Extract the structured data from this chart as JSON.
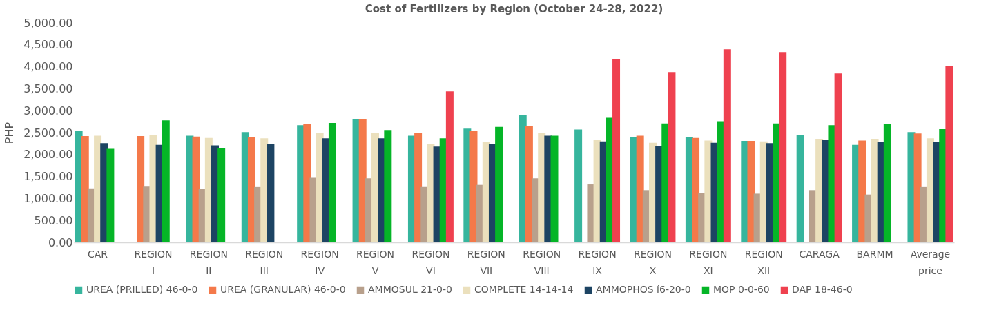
{
  "chart_data": {
    "type": "bar",
    "title": "Cost of Fertilizers by Region (October 24-28, 2022)",
    "ylabel": "PHP",
    "categories": [
      "CAR",
      "REGION I",
      "REGION II",
      "REGION III",
      "REGION IV",
      "REGION V",
      "REGION VI",
      "REGION VII",
      "REGION VIII",
      "REGION IX",
      "REGION X",
      "REGION XI",
      "REGION XII",
      "CARAGA",
      "BARMM",
      "Average price"
    ],
    "series": [
      {
        "name": "UREA (PRILLED) 46-0-0",
        "color": "#36b59d",
        "values": [
          2540,
          null,
          2430,
          2510,
          2670,
          2810,
          2430,
          2590,
          2900,
          2570,
          2400,
          2400,
          2310,
          2440,
          2220,
          2510
        ]
      },
      {
        "name": "UREA (GRANULAR) 46-0-0",
        "color": "#f4794a",
        "values": [
          2420,
          2420,
          2410,
          2400,
          2700,
          2800,
          2490,
          2540,
          2640,
          null,
          2430,
          2380,
          2310,
          null,
          2320,
          2480
        ]
      },
      {
        "name": "AMMOSUL 21-0-0",
        "color": "#b8a08c",
        "values": [
          1230,
          1270,
          1220,
          1260,
          1470,
          1460,
          1260,
          1310,
          1460,
          1320,
          1190,
          1120,
          1110,
          1190,
          1090,
          1260
        ]
      },
      {
        "name": "COMPLETE 14-14-14",
        "color": "#ebe0bd",
        "values": [
          2430,
          2440,
          2380,
          2370,
          2490,
          2490,
          2240,
          2290,
          2490,
          2340,
          2270,
          2320,
          2300,
          2360,
          2360,
          2370
        ]
      },
      {
        "name": "AMMOPHOS í6-20-0",
        "color": "#1d4463",
        "values": [
          2260,
          2220,
          2210,
          2250,
          2370,
          2370,
          2180,
          2240,
          2430,
          2300,
          2200,
          2270,
          2260,
          2330,
          2290,
          2280
        ]
      },
      {
        "name": "MOP 0-0-60",
        "color": "#05b527",
        "values": [
          2130,
          2780,
          2150,
          null,
          2720,
          2560,
          2370,
          2630,
          2430,
          2840,
          2710,
          2760,
          2710,
          2670,
          2700,
          2580
        ]
      },
      {
        "name": "DAP 18-46-0",
        "color": "#ef414f",
        "values": [
          null,
          null,
          null,
          null,
          null,
          null,
          3440,
          null,
          null,
          4180,
          3880,
          4400,
          4320,
          3850,
          null,
          4010
        ]
      }
    ],
    "ylim": [
      0,
      5000
    ],
    "yticks": [
      {
        "value": 0,
        "label": "0.00"
      },
      {
        "value": 500,
        "label": "500.00"
      },
      {
        "value": 1000,
        "label": "1,000.00"
      },
      {
        "value": 1500,
        "label": "1,500.00"
      },
      {
        "value": 2000,
        "label": "2,000.00"
      },
      {
        "value": 2500,
        "label": "2,500.00"
      },
      {
        "value": 3000,
        "label": "3,000.00"
      },
      {
        "value": 3500,
        "label": "3,500.00"
      },
      {
        "value": 4000,
        "label": "4,000.00"
      },
      {
        "value": 4500,
        "label": "4,500.00"
      },
      {
        "value": 5000,
        "label": "5,000.00"
      }
    ],
    "grid": false,
    "legend": "bottom"
  }
}
